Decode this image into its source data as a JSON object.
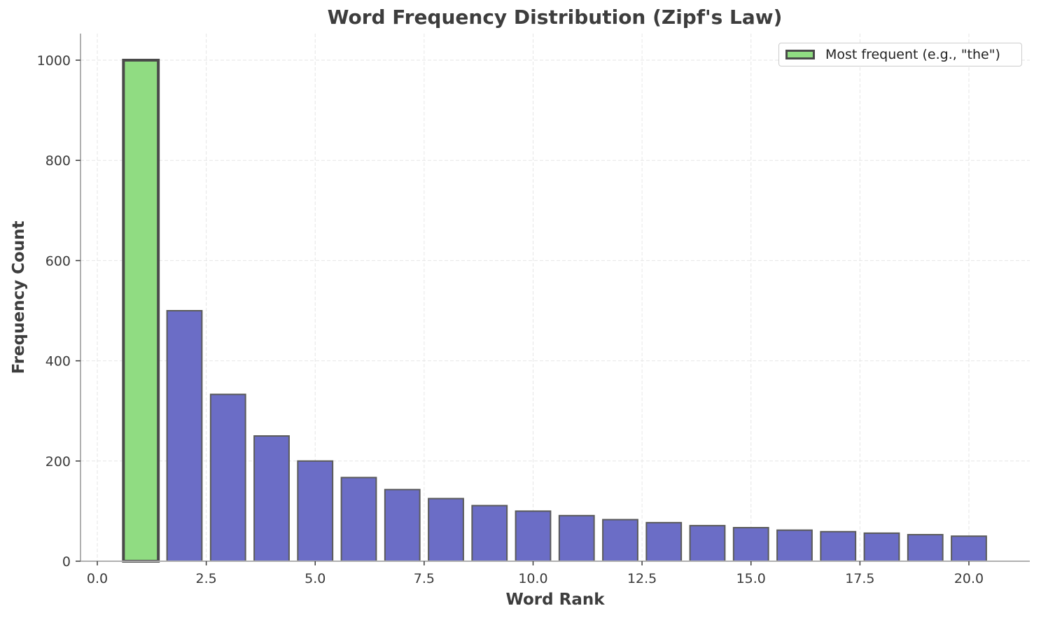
{
  "chart_data": {
    "type": "bar",
    "title": "Word Frequency Distribution (Zipf's Law)",
    "xlabel": "Word Rank",
    "ylabel": "Frequency Count",
    "x": [
      1,
      2,
      3,
      4,
      5,
      6,
      7,
      8,
      9,
      10,
      11,
      12,
      13,
      14,
      15,
      16,
      17,
      18,
      19,
      20
    ],
    "values": [
      1000,
      500,
      333,
      250,
      200,
      167,
      143,
      125,
      111,
      100,
      91,
      83,
      77,
      71,
      67,
      62,
      59,
      56,
      53,
      50
    ],
    "xlim": [
      -0.4,
      21.4
    ],
    "ylim": [
      0,
      1050
    ],
    "xticks": [
      "0.0",
      "2.5",
      "5.0",
      "7.5",
      "10.0",
      "12.5",
      "15.0",
      "17.5",
      "20.0"
    ],
    "yticks": [
      "0",
      "200",
      "400",
      "600",
      "800",
      "1000"
    ],
    "grid": true,
    "legend": {
      "position": "upper right",
      "entries": [
        "Most frequent (e.g., \"the\")"
      ]
    },
    "colors": {
      "highlight": "#90dc82",
      "bars": "#6b6dc6",
      "highlight_edge": "#4a4a4a",
      "bar_edge": "#5a5a5a"
    }
  }
}
